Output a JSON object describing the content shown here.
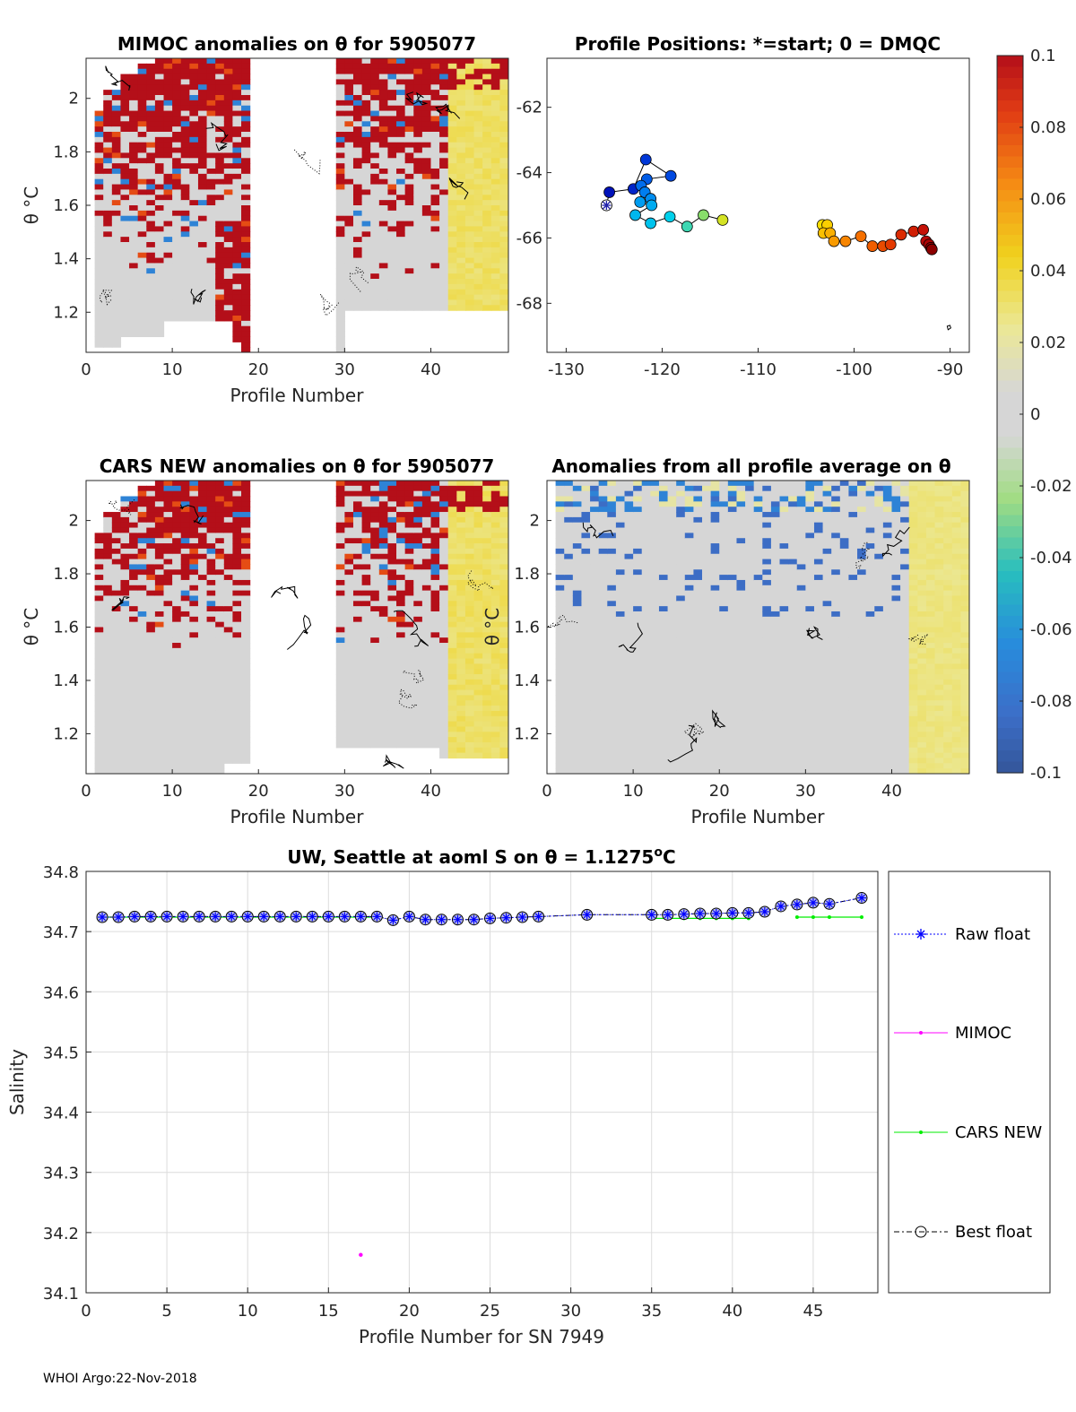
{
  "footer": "WHOI Argo:22-Nov-2018",
  "colorbar": {
    "ticks": [
      "0.1",
      "0.08",
      "0.06",
      "0.04",
      "0.02",
      "0",
      "-0.02",
      "-0.04",
      "-0.06",
      "-0.08",
      "-0.1"
    ],
    "min": -0.1,
    "max": 0.1
  },
  "chart_data": [
    {
      "id": "mimoc",
      "type": "heatmap",
      "title": "MIMOC anomalies on θ  for 5905077",
      "xlabel": "Profile Number",
      "ylabel": "θ °C",
      "xlim": [
        0,
        49
      ],
      "ylim": [
        1.05,
        2.15
      ],
      "xticks": [
        "0",
        "10",
        "20",
        "30",
        "40"
      ],
      "yticks": [
        "2",
        "1.8",
        "1.6",
        "1.4",
        "1.2"
      ],
      "note": "anomaly field, mostly ±0.1 saturated; profiles 19–28 missing"
    },
    {
      "id": "positions",
      "type": "scatter",
      "title": "Profile Positions: *=start; 0 = DMQC",
      "xlim": [
        -132,
        -88
      ],
      "ylim": [
        -69.5,
        -60.5
      ],
      "xticks": [
        "-130",
        "-120",
        "-110",
        "-100",
        "-90"
      ],
      "yticks": [
        "-62",
        "-64",
        "-66",
        "-68"
      ],
      "track_west": [
        [
          -125.8,
          -65.0
        ],
        [
          -125.5,
          -64.6
        ],
        [
          -123,
          -64.5
        ],
        [
          -121.7,
          -63.6
        ],
        [
          -119.1,
          -64.1
        ],
        [
          -121.6,
          -64.2
        ],
        [
          -122.2,
          -64.4
        ],
        [
          -121.8,
          -64.6
        ],
        [
          -121.2,
          -64.8
        ],
        [
          -122.3,
          -64.9
        ],
        [
          -121.1,
          -65.0
        ],
        [
          -122.8,
          -65.3
        ],
        [
          -121.2,
          -65.55
        ],
        [
          -119.2,
          -65.35
        ],
        [
          -117.4,
          -65.65
        ],
        [
          -115.7,
          -65.3
        ],
        [
          -113.7,
          -65.45
        ]
      ],
      "track_east": [
        [
          -103.3,
          -65.6
        ],
        [
          -102.8,
          -65.6
        ],
        [
          -103.2,
          -65.85
        ],
        [
          -102.5,
          -65.85
        ],
        [
          -102.1,
          -66.1
        ],
        [
          -100.9,
          -66.1
        ],
        [
          -99.3,
          -65.95
        ],
        [
          -98.1,
          -66.25
        ],
        [
          -97.0,
          -66.25
        ],
        [
          -96.2,
          -66.2
        ],
        [
          -95.1,
          -65.9
        ],
        [
          -93.8,
          -65.8
        ],
        [
          -92.8,
          -65.75
        ],
        [
          -92.5,
          -66.1
        ],
        [
          -92.2,
          -66.2
        ],
        [
          -92.0,
          -66.3
        ],
        [
          -91.9,
          -66.35
        ]
      ],
      "start": [
        -125.8,
        -65.0
      ]
    },
    {
      "id": "cars",
      "type": "heatmap",
      "title": "CARS NEW anomalies on θ for 5905077",
      "xlabel": "Profile Number",
      "ylabel": "θ °C",
      "xlim": [
        0,
        49
      ],
      "ylim": [
        1.05,
        2.15
      ],
      "xticks": [
        "0",
        "10",
        "20",
        "30",
        "40"
      ],
      "yticks": [
        "2",
        "1.8",
        "1.6",
        "1.4",
        "1.2"
      ]
    },
    {
      "id": "allavg",
      "type": "heatmap",
      "title": "Anomalies from all profile average on θ",
      "xlabel": "Profile Number",
      "ylabel": "θ °C",
      "xlim": [
        0,
        49
      ],
      "ylim": [
        1.05,
        2.15
      ],
      "xticks": [
        "0",
        "10",
        "20",
        "30",
        "40"
      ],
      "yticks": [
        "2",
        "1.8",
        "1.6",
        "1.4",
        "1.2"
      ]
    },
    {
      "id": "salinity",
      "type": "line",
      "title": "UW, Seattle at aoml S on θ = 1.1275°C",
      "title_main": "UW, Seattle at aoml S on θ = 1.1275",
      "title_sup": "o",
      "title_end": "C",
      "xlabel": "Profile Number for SN 7949",
      "ylabel": "Salinity",
      "xlim": [
        0,
        49
      ],
      "ylim": [
        34.1,
        34.8
      ],
      "xticks": [
        "0",
        "5",
        "10",
        "15",
        "20",
        "25",
        "30",
        "35",
        "40",
        "45"
      ],
      "yticks": [
        "34.8",
        "34.7",
        "34.6",
        "34.5",
        "34.4",
        "34.3",
        "34.2",
        "34.1"
      ],
      "x": [
        1,
        2,
        3,
        4,
        5,
        6,
        7,
        8,
        9,
        10,
        11,
        12,
        13,
        14,
        15,
        16,
        17,
        18,
        19,
        20,
        21,
        22,
        23,
        24,
        25,
        26,
        27,
        28,
        31,
        35,
        36,
        37,
        38,
        39,
        40,
        41,
        42,
        43,
        44,
        45,
        46,
        48
      ],
      "series": [
        {
          "name": "Raw float",
          "color": "#0000ff",
          "values": [
            34.724,
            34.724,
            34.725,
            34.725,
            34.725,
            34.725,
            34.725,
            34.725,
            34.725,
            34.725,
            34.725,
            34.725,
            34.725,
            34.725,
            34.725,
            34.725,
            34.725,
            34.725,
            34.719,
            34.725,
            34.72,
            34.72,
            34.72,
            34.72,
            34.722,
            34.723,
            34.724,
            34.725,
            34.728,
            34.728,
            34.728,
            34.729,
            34.73,
            34.73,
            34.731,
            34.731,
            34.733,
            34.742,
            34.745,
            34.748,
            34.746,
            34.756
          ]
        },
        {
          "name": "MIMOC",
          "color": "#ff00ff",
          "x": [
            17
          ],
          "values": [
            34.163
          ]
        },
        {
          "name": "CARS NEW",
          "color": "#00ee00",
          "x": [
            1,
            2,
            3,
            4,
            5,
            6,
            7,
            8,
            9,
            10,
            11,
            12,
            13,
            14,
            15,
            16,
            17,
            18,
            35,
            36,
            37,
            38,
            39,
            40,
            41,
            44,
            45,
            46,
            48
          ],
          "values": [
            34.724,
            34.724,
            34.724,
            34.724,
            34.724,
            34.724,
            34.724,
            34.724,
            34.724,
            34.724,
            34.724,
            34.724,
            34.724,
            34.724,
            34.724,
            34.724,
            34.724,
            34.724,
            34.722,
            34.722,
            34.722,
            34.722,
            34.722,
            34.722,
            34.722,
            34.724,
            34.724,
            34.724,
            34.724
          ]
        },
        {
          "name": "Best float",
          "color": "#000000",
          "values": [
            34.724,
            34.724,
            34.725,
            34.725,
            34.725,
            34.725,
            34.725,
            34.725,
            34.725,
            34.725,
            34.725,
            34.725,
            34.725,
            34.725,
            34.725,
            34.725,
            34.725,
            34.725,
            34.719,
            34.725,
            34.72,
            34.72,
            34.72,
            34.72,
            34.722,
            34.723,
            34.724,
            34.725,
            34.728,
            34.728,
            34.728,
            34.729,
            34.73,
            34.73,
            34.731,
            34.731,
            34.733,
            34.742,
            34.745,
            34.748,
            34.746,
            34.756
          ]
        }
      ],
      "legend": [
        "Raw float",
        "MIMOC",
        "CARS NEW",
        "Best float"
      ]
    }
  ]
}
